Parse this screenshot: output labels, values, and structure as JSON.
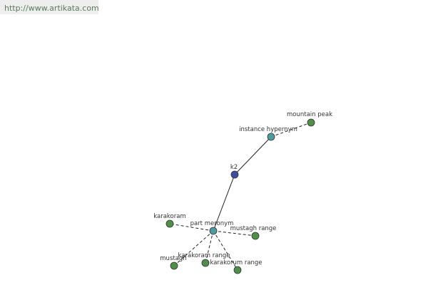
{
  "header": {
    "url": "http://www.artikata.com"
  },
  "nodes": [
    {
      "label": "k2"
    },
    {
      "label": "instance hypernym"
    },
    {
      "label": "mountain peak"
    },
    {
      "label": "part meronym"
    },
    {
      "label": "karakoram"
    },
    {
      "label": "mustagh range"
    },
    {
      "label": "mustagh"
    },
    {
      "label": "karakoram range"
    },
    {
      "label": "karakorum range"
    }
  ]
}
